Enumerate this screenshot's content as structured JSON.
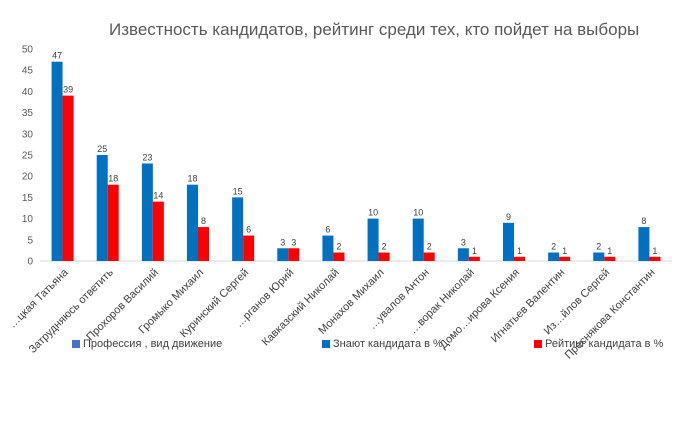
{
  "chart_data": {
    "type": "bar",
    "title": "Известность кандидатов, рейтинг среди тех, кто пойдет на выборы",
    "ylim": [
      0,
      50
    ],
    "yticks": [
      0,
      5,
      10,
      15,
      20,
      25,
      30,
      35,
      40,
      45,
      50
    ],
    "grid": false,
    "legend_position": "bottom",
    "categories": [
      "…цкая Татьяна",
      "Затрудняюсь ответить",
      "Прохоров Василий",
      "Громыко Михаил",
      "Куринский Сергей",
      "…рганов Юрий",
      "Кавказский Николай",
      "Монахов Михаил",
      "…увалов Антон",
      "…ворак Николай",
      "Домо…ирова Ксения",
      "Игнатьев Валентин",
      "Из…йлов Сергей",
      "Преснякова Константин"
    ],
    "series": [
      {
        "name": "Профессия , вид движение",
        "color": "#4472c4",
        "values": [
          null,
          null,
          null,
          null,
          null,
          null,
          null,
          null,
          null,
          null,
          null,
          null,
          null,
          null
        ]
      },
      {
        "name": "Знают кандидата в %",
        "color": "#0070c0",
        "values": [
          47,
          25,
          23,
          18,
          15,
          3,
          6,
          10,
          10,
          3,
          9,
          2,
          2,
          8
        ]
      },
      {
        "name": "Рейтинг кандидата в %",
        "color": "#ff0000",
        "values": [
          39,
          18,
          14,
          8,
          6,
          3,
          2,
          2,
          2,
          1,
          1,
          1,
          1,
          1
        ]
      }
    ]
  }
}
